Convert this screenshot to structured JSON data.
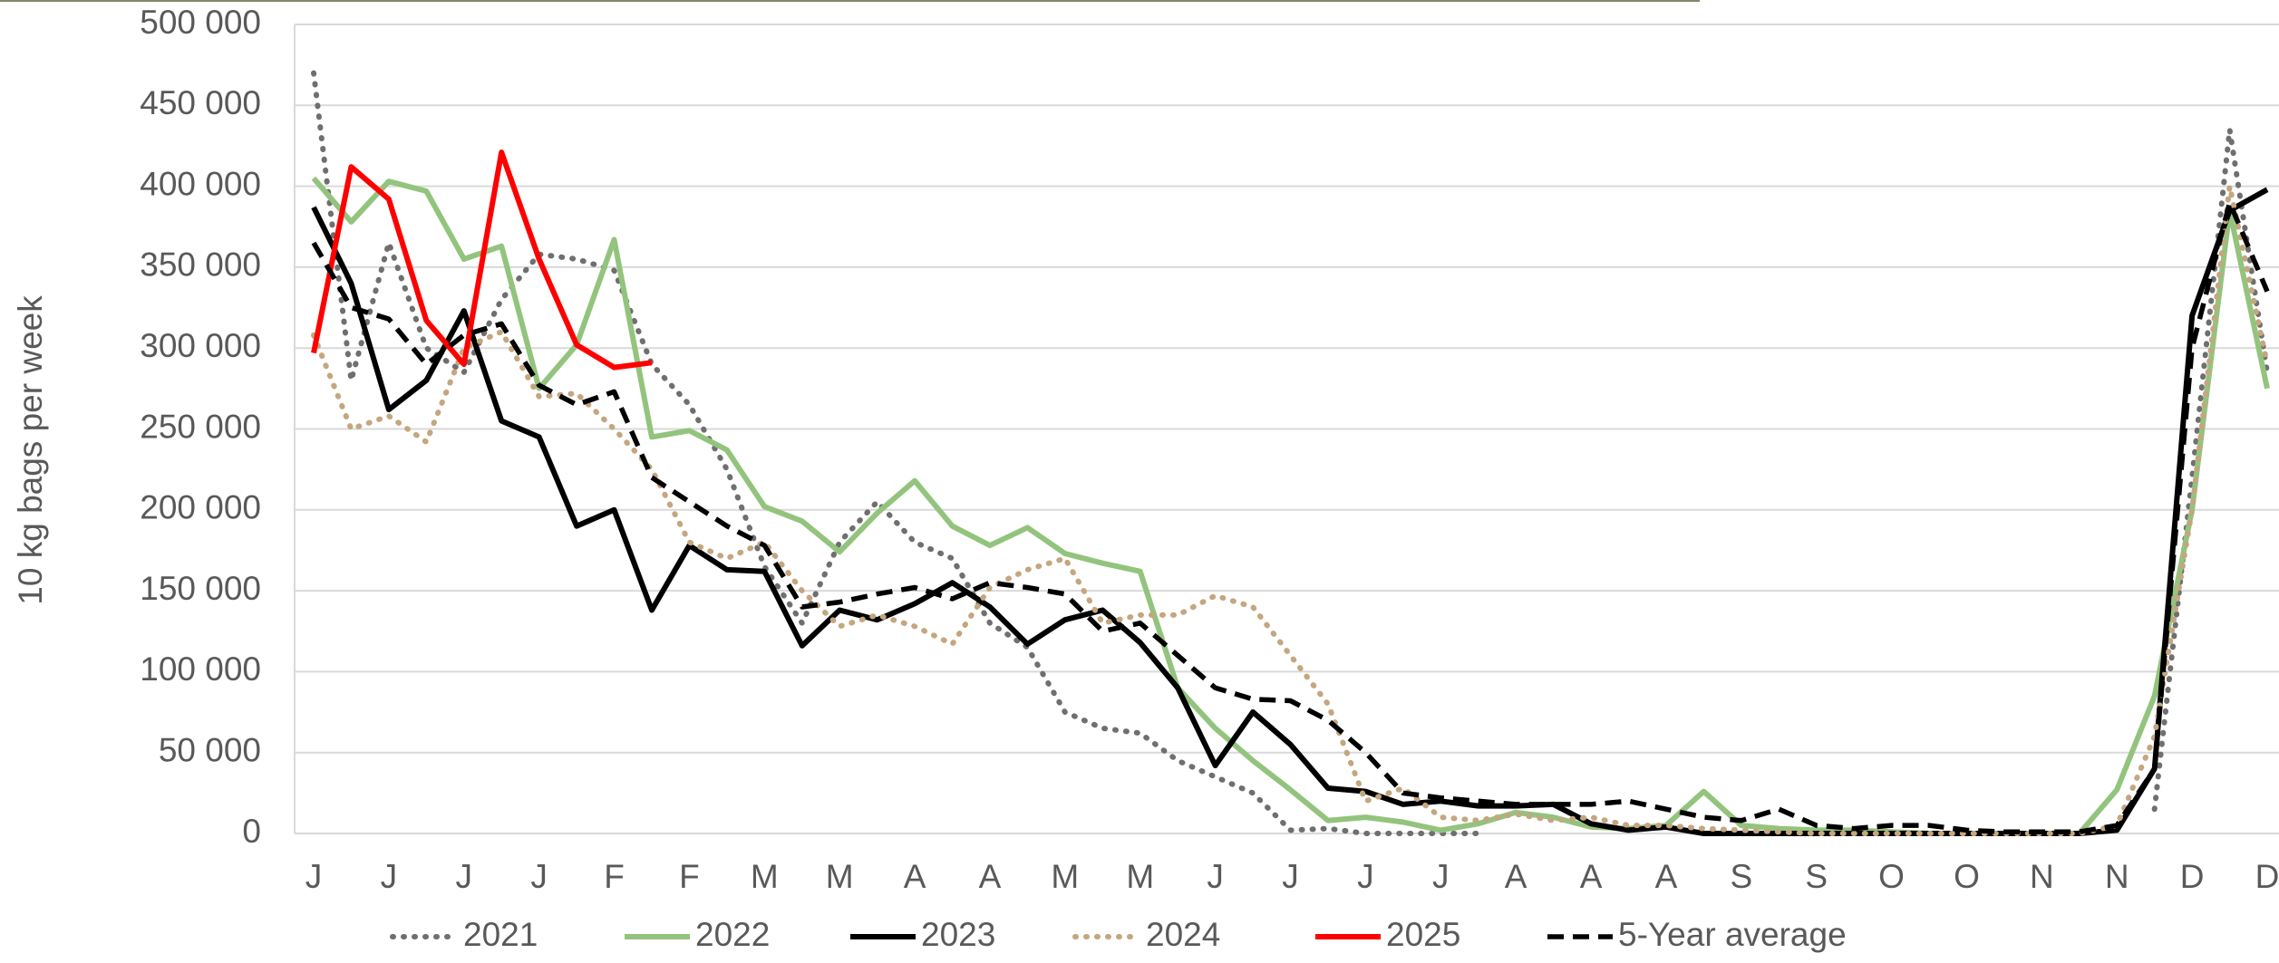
{
  "chart_data": {
    "type": "line",
    "y_axis_label": "10 kg bags per week",
    "categories": [
      "J",
      null,
      "J",
      null,
      "J",
      null,
      "J",
      null,
      "F",
      null,
      "F",
      null,
      "M",
      null,
      "M",
      null,
      "A",
      null,
      "A",
      null,
      "M",
      null,
      "M",
      null,
      "J",
      null,
      "J",
      null,
      "J",
      null,
      "J",
      null,
      "A",
      null,
      "A",
      null,
      "A",
      null,
      "S",
      null,
      "S",
      null,
      "O",
      null,
      "O",
      null,
      "N",
      null,
      "N",
      null,
      "D",
      null,
      "D"
    ],
    "ylim": [
      0,
      500000
    ],
    "yticks": [
      0,
      {
        "value": 50000,
        "label": "50 000"
      },
      {
        "value": 100000,
        "label": "100 000"
      },
      {
        "value": 150000,
        "label": "150 000"
      },
      {
        "value": 200000,
        "label": "200 000"
      },
      {
        "value": 250000,
        "label": "250 000"
      },
      {
        "value": 300000,
        "label": "300 000"
      },
      {
        "value": 350000,
        "label": "350 000"
      },
      {
        "value": 400000,
        "label": "400 000"
      },
      {
        "value": 450000,
        "label": "450 000"
      },
      {
        "value": 500000,
        "label": "500 000"
      }
    ],
    "grid": true,
    "legend": "bottom",
    "series": [
      {
        "name": "2021",
        "color": "#6f6f6f",
        "line_style": "dotted",
        "values": [
          470000,
          280000,
          365000,
          300000,
          285000,
          330000,
          358000,
          355000,
          348000,
          290000,
          265000,
          225000,
          165000,
          130000,
          180000,
          205000,
          180000,
          170000,
          130000,
          115000,
          75000,
          65000,
          62000,
          45000,
          35000,
          25000,
          2000,
          3000,
          0,
          0,
          0,
          0,
          null,
          null,
          null,
          null,
          null,
          null,
          null,
          null,
          null,
          null,
          null,
          null,
          null,
          null,
          null,
          null,
          null,
          15000,
          220000,
          435000,
          285000
        ]
      },
      {
        "name": "2022",
        "color": "#93c47d",
        "line_style": "solid",
        "values": [
          405000,
          378000,
          403000,
          397000,
          355000,
          363000,
          275000,
          302000,
          367000,
          245000,
          249000,
          237000,
          202000,
          193000,
          174000,
          198000,
          218000,
          190000,
          178000,
          189000,
          173000,
          167000,
          162000,
          90000,
          65000,
          45000,
          27000,
          8000,
          10000,
          7000,
          2000,
          6000,
          13000,
          10000,
          4000,
          3000,
          5000,
          26000,
          5000,
          3000,
          2000,
          2000,
          1000,
          0,
          0,
          0,
          0,
          0,
          27000,
          85000,
          200000,
          385000,
          275000
        ]
      },
      {
        "name": "2023",
        "color": "#000000",
        "line_style": "solid",
        "values": [
          387000,
          340000,
          262000,
          280000,
          323000,
          255000,
          245000,
          190000,
          200000,
          138000,
          178000,
          163000,
          162000,
          116000,
          138000,
          132000,
          142000,
          155000,
          140000,
          117000,
          132000,
          138000,
          118000,
          90000,
          42000,
          75000,
          55000,
          28000,
          26000,
          18000,
          20000,
          17000,
          17000,
          18000,
          6000,
          2000,
          4000,
          0,
          0,
          0,
          0,
          0,
          0,
          0,
          0,
          0,
          0,
          0,
          2000,
          40000,
          320000,
          385000,
          398000
        ]
      },
      {
        "name": "2024",
        "color": "#c4a67f",
        "line_style": "dotted",
        "values": [
          308000,
          250000,
          258000,
          242000,
          300000,
          310000,
          270000,
          272000,
          250000,
          225000,
          180000,
          170000,
          180000,
          150000,
          128000,
          135000,
          128000,
          117000,
          152000,
          163000,
          170000,
          130000,
          135000,
          135000,
          147000,
          140000,
          110000,
          80000,
          20000,
          28000,
          10000,
          8000,
          12000,
          8000,
          10000,
          5000,
          5000,
          3000,
          2000,
          1000,
          0,
          0,
          0,
          0,
          0,
          0,
          0,
          0,
          5000,
          60000,
          200000,
          400000,
          290000
        ]
      },
      {
        "name": "2025",
        "color": "#ff0000",
        "line_style": "solid",
        "values": [
          297000,
          412000,
          392000,
          317000,
          290000,
          421000,
          355000,
          302000,
          288000,
          291000,
          null,
          null,
          null,
          null,
          null,
          null,
          null,
          null,
          null,
          null,
          null,
          null,
          null,
          null,
          null,
          null,
          null,
          null,
          null,
          null,
          null,
          null,
          null,
          null,
          null,
          null,
          null,
          null,
          null,
          null,
          null,
          null,
          null,
          null,
          null,
          null,
          null,
          null,
          null,
          null,
          null,
          null,
          null
        ]
      },
      {
        "name": "5-Year average",
        "color": "#000000",
        "line_style": "dashed",
        "values": [
          365000,
          325000,
          318000,
          290000,
          308000,
          315000,
          277000,
          265000,
          273000,
          220000,
          205000,
          190000,
          178000,
          140000,
          143000,
          148000,
          152000,
          145000,
          155000,
          152000,
          148000,
          125000,
          130000,
          110000,
          90000,
          83000,
          82000,
          70000,
          50000,
          25000,
          22000,
          20000,
          18000,
          18000,
          18000,
          20000,
          15000,
          10000,
          8000,
          15000,
          5000,
          3000,
          5000,
          5000,
          2000,
          1000,
          1000,
          1000,
          5000,
          40000,
          300000,
          390000,
          335000
        ]
      }
    ]
  }
}
